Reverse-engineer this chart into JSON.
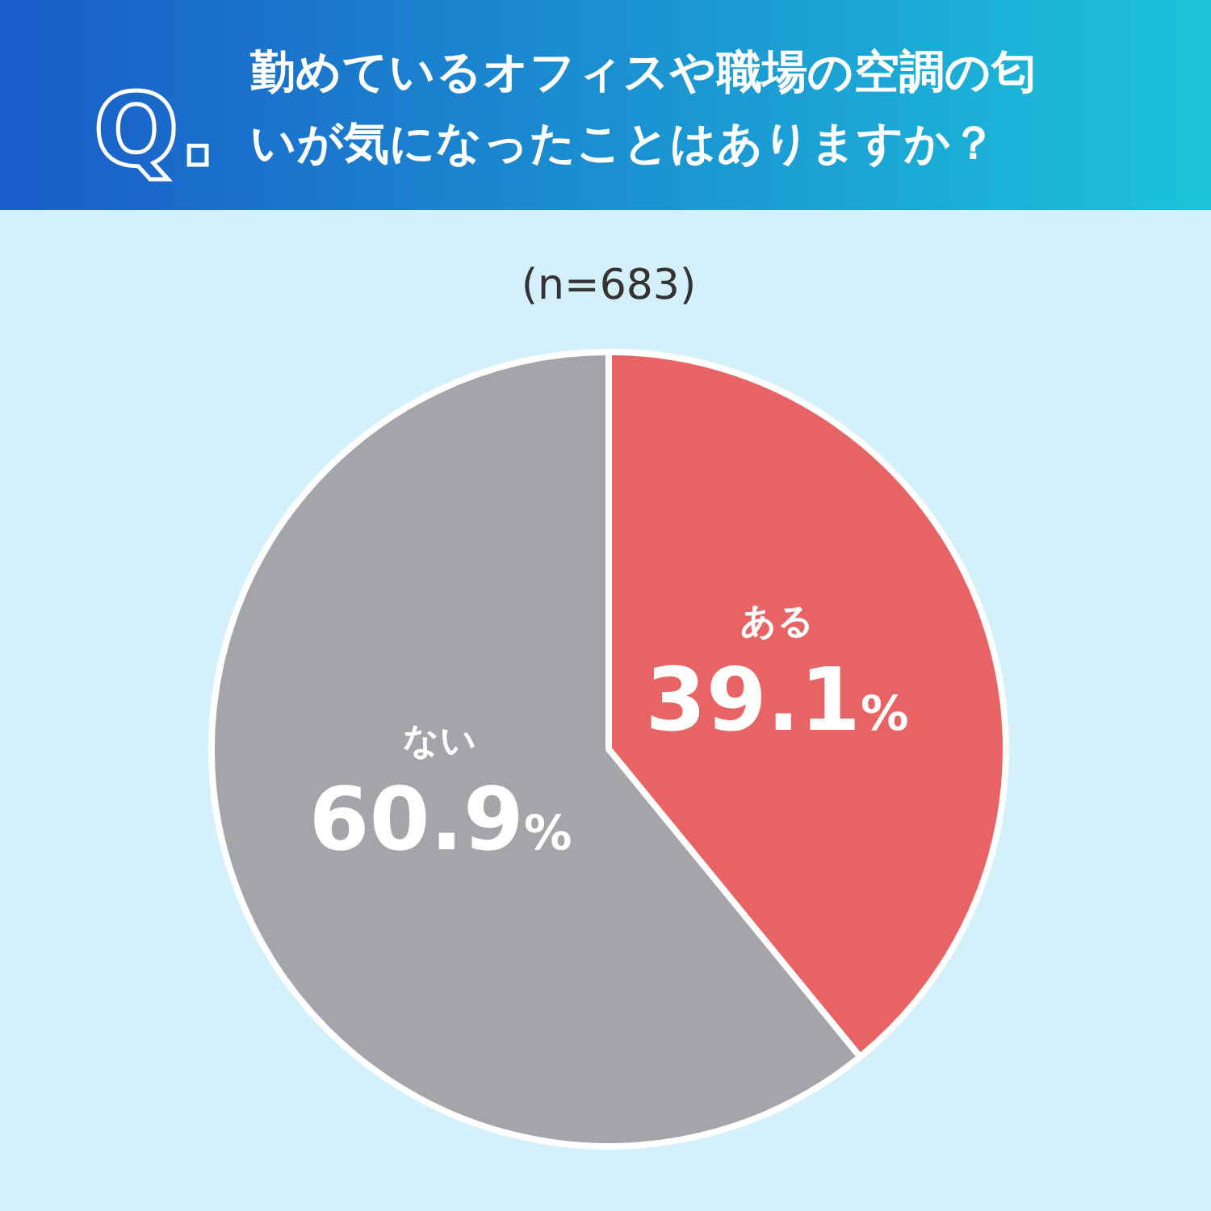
{
  "chart_data": {
    "type": "pie",
    "title": "勤めているオフィスや職場の空調の匂いが気になったことはありますか？",
    "subtitle": "(n=683)",
    "annotations": [
      "Q."
    ],
    "categories": [
      "ある",
      "ない"
    ],
    "values": [
      39.1,
      60.9
    ],
    "colors": [
      "#e86464",
      "#a3a5a9"
    ],
    "value_labels": [
      "39.1%",
      "60.9%"
    ]
  }
}
